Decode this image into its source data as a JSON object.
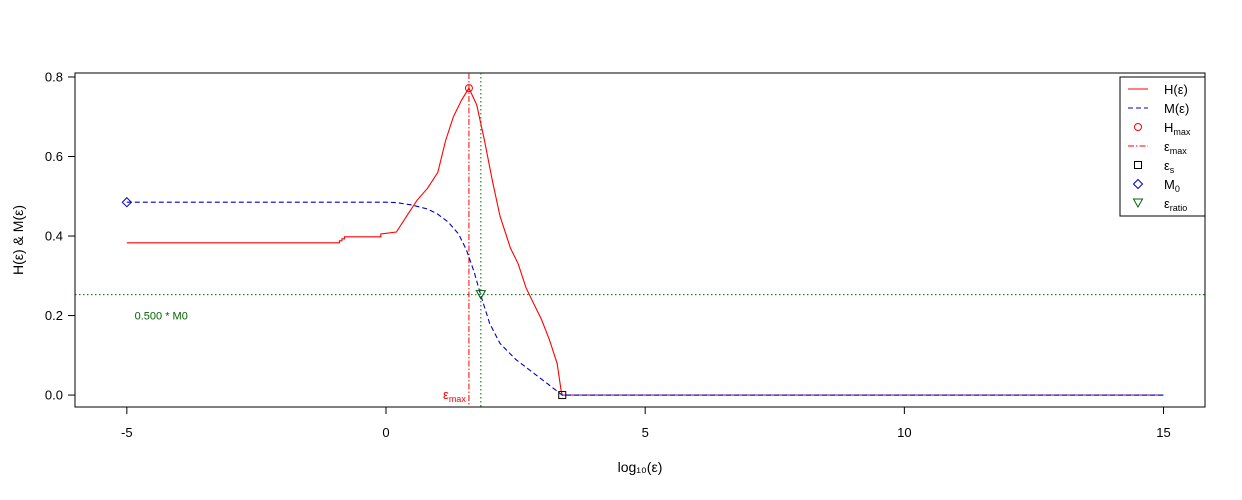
{
  "chart_data": {
    "type": "line",
    "xlabel": "log₁₀(ε)",
    "ylabel": "H(ε)  &  M(ε)",
    "xlim": [
      -6.0,
      15.8
    ],
    "ylim": [
      -0.03,
      0.81
    ],
    "xticks": [
      -5,
      0,
      5,
      10,
      15
    ],
    "yticks": [
      0.0,
      0.2,
      0.4,
      0.6,
      0.8
    ],
    "xtick_labels": [
      "-5",
      "0",
      "5",
      "10",
      "15"
    ],
    "ytick_labels": [
      "0.0",
      "0.2",
      "0.4",
      "0.6",
      "0.8"
    ],
    "grid": false,
    "legend_position": "top-right",
    "series": [
      {
        "name": "H(ε)",
        "color": "#ff0000",
        "style": "solid",
        "x": [
          -5,
          -0.9,
          -0.9,
          -0.85,
          -0.85,
          -0.8,
          -0.8,
          -0.1,
          -0.1,
          0.2,
          0.4,
          0.6,
          0.8,
          1.0,
          1.15,
          1.3,
          1.45,
          1.6,
          1.75,
          1.9,
          2.05,
          2.2,
          2.4,
          2.55,
          2.7,
          2.85,
          3.0,
          3.15,
          3.3,
          3.38,
          3.4,
          15
        ],
        "y": [
          0.383,
          0.383,
          0.388,
          0.388,
          0.393,
          0.393,
          0.398,
          0.398,
          0.405,
          0.41,
          0.45,
          0.49,
          0.52,
          0.56,
          0.64,
          0.7,
          0.74,
          0.772,
          0.73,
          0.64,
          0.54,
          0.45,
          0.37,
          0.33,
          0.27,
          0.23,
          0.19,
          0.14,
          0.08,
          0.01,
          0.0,
          0.0
        ]
      },
      {
        "name": "M(ε)",
        "color": "#0000cc",
        "style": "dashed",
        "x": [
          -5,
          0.0,
          0.2,
          0.5,
          0.8,
          1.0,
          1.2,
          1.4,
          1.55,
          1.7,
          1.83,
          2.0,
          2.2,
          2.5,
          2.8,
          3.1,
          3.4,
          15
        ],
        "y": [
          0.485,
          0.485,
          0.484,
          0.478,
          0.468,
          0.455,
          0.435,
          0.405,
          0.365,
          0.31,
          0.25,
          0.18,
          0.13,
          0.09,
          0.06,
          0.03,
          0.0,
          0.0
        ]
      }
    ],
    "points": [
      {
        "name": "Hₘₐₓ",
        "x": 1.6,
        "y": 0.772,
        "marker": "circle",
        "color": "#ff0000"
      },
      {
        "name": "εs",
        "x": 3.4,
        "y": 0.0,
        "marker": "square",
        "color": "#000000"
      },
      {
        "name": "M₀",
        "x": -5.0,
        "y": 0.485,
        "marker": "diamond",
        "color": "#0000cc"
      },
      {
        "name": "εratio",
        "x": 1.83,
        "y": 0.2525,
        "marker": "triangle-down",
        "color": "#006400"
      }
    ],
    "reference_lines": [
      {
        "orientation": "vertical",
        "x": 1.6,
        "color": "#ff0000",
        "style": "dashdot"
      },
      {
        "orientation": "vertical",
        "x": 1.83,
        "color": "#006400",
        "style": "dotted"
      },
      {
        "orientation": "horizontal",
        "y": 0.2525,
        "color": "#006400",
        "style": "dotted"
      }
    ],
    "annotations": [
      {
        "base": "ε",
        "sub": "max",
        "x": 1.1,
        "y": 0.0,
        "color": "#ff0000"
      },
      {
        "text": "0.500 * M0",
        "x": -4.85,
        "y": 0.2,
        "color": "#006400"
      }
    ],
    "legend": [
      {
        "base": "H(ε)",
        "sub": "",
        "color": "#ff0000",
        "kind": "line-solid"
      },
      {
        "base": "M(ε)",
        "sub": "",
        "color": "#0000cc",
        "kind": "line-dashed"
      },
      {
        "base": "H",
        "sub": "max",
        "color": "#ff0000",
        "kind": "circle"
      },
      {
        "base": "ε",
        "sub": "max",
        "color": "#ff0000",
        "kind": "line-dashdot"
      },
      {
        "base": "ε",
        "sub": "s",
        "color": "#000000",
        "kind": "square"
      },
      {
        "base": "M",
        "sub": "0",
        "color": "#0000cc",
        "kind": "diamond"
      },
      {
        "base": "ε",
        "sub": "ratio",
        "color": "#006400",
        "kind": "triangle-down"
      }
    ]
  }
}
